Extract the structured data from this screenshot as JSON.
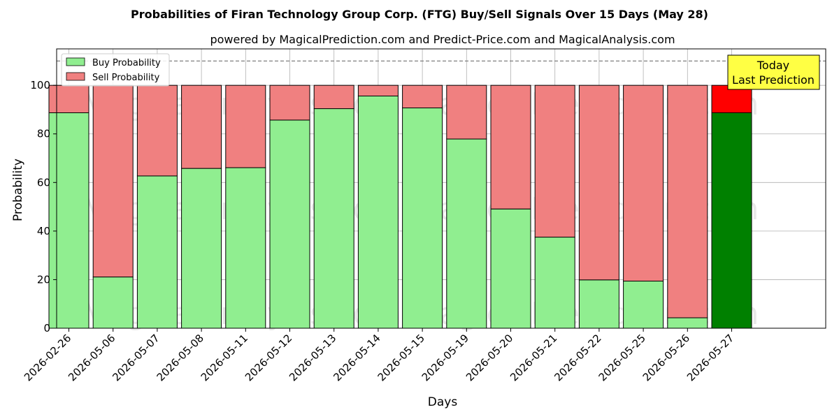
{
  "chart_data": {
    "type": "bar",
    "title": "Probabilities of Firan Technology Group Corp. (FTG) Buy/Sell Signals Over 15 Days (May 28)",
    "subtitle": "powered by MagicalPrediction.com and Predict-Price.com and MagicalAnalysis.com",
    "xlabel": "Days",
    "ylabel": "Probability",
    "ylim": [
      0,
      115
    ],
    "yticks": [
      0,
      20,
      40,
      60,
      80,
      100
    ],
    "grid": true,
    "stacked": true,
    "legend_position": "top-left",
    "reference_line": 110,
    "categories": [
      "2026-02-26",
      "2026-05-06",
      "2026-05-07",
      "2026-05-08",
      "2026-05-11",
      "2026-05-12",
      "2026-05-13",
      "2026-05-14",
      "2026-05-15",
      "2026-05-19",
      "2026-05-20",
      "2026-05-21",
      "2026-05-22",
      "2026-05-25",
      "2026-05-26",
      "2026-05-27"
    ],
    "series": [
      {
        "name": "Buy Probability",
        "color": "#90ee90",
        "highlight_color": "#008000",
        "values": [
          88.7,
          21.1,
          62.7,
          65.8,
          66.1,
          85.7,
          90.4,
          95.6,
          90.7,
          77.9,
          49.1,
          37.5,
          19.9,
          19.4,
          4.3,
          88.7
        ]
      },
      {
        "name": "Sell Probability",
        "color": "#f08080",
        "highlight_color": "#ff0000",
        "values": [
          11.3,
          78.9,
          37.3,
          34.2,
          33.9,
          14.3,
          9.6,
          4.4,
          9.3,
          22.1,
          50.9,
          62.5,
          80.1,
          80.6,
          95.7,
          11.3
        ]
      }
    ],
    "annotation": {
      "lines": [
        "Today",
        "Last Prediction"
      ],
      "background": "#ffff44"
    },
    "watermarks": [
      "MagicalAnalysis.com",
      "MagicalPrediction.com"
    ]
  }
}
